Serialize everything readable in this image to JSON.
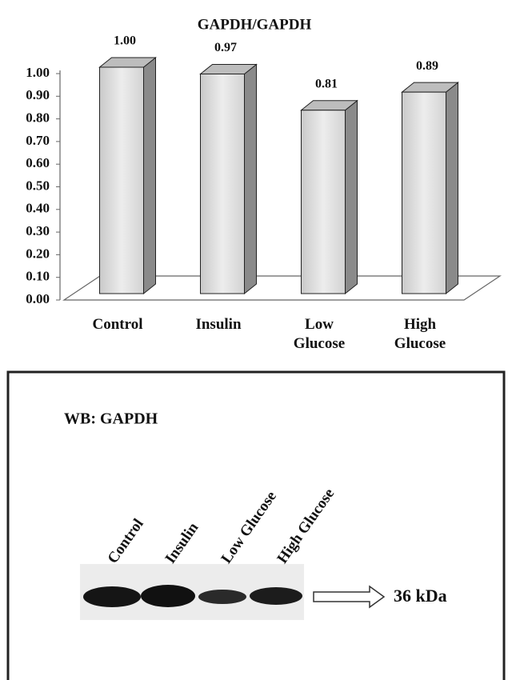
{
  "chart_data": {
    "type": "bar3d",
    "title": "GAPDH/GAPDH",
    "categories": [
      "Control",
      "Insulin",
      "Low Glucose",
      "High Glucose"
    ],
    "values": [
      1,
      0.97,
      0.81,
      0.89
    ],
    "value_labels": [
      "1.00",
      "0.97",
      "0.81",
      "0.89"
    ],
    "ylim": [
      0,
      1
    ],
    "yticks": [
      {
        "value": 0,
        "label": "0.00"
      },
      {
        "value": 0.1,
        "label": "0.10"
      },
      {
        "value": 0.2,
        "label": "0.20"
      },
      {
        "value": 0.3,
        "label": "0.30"
      },
      {
        "value": 0.4,
        "label": "0.40"
      },
      {
        "value": 0.5,
        "label": "0.50"
      },
      {
        "value": 0.6,
        "label": "0.60"
      },
      {
        "value": 0.7,
        "label": "0.70"
      },
      {
        "value": 0.8,
        "label": "0.80"
      },
      {
        "value": 0.9,
        "label": "0.90"
      },
      {
        "value": 1,
        "label": "1.00"
      }
    ],
    "grid": false
  },
  "blot": {
    "label": "WB: GAPDH",
    "lanes": [
      "Control",
      "Insulin",
      "Low Glucose",
      "High Glucose"
    ],
    "marker": "36 kDa"
  }
}
